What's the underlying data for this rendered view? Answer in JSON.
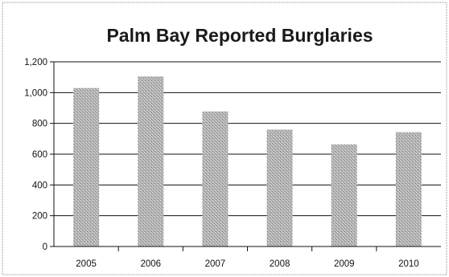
{
  "chart_data": {
    "type": "bar",
    "title": "Palm Bay Reported Burglaries",
    "xlabel": "",
    "ylabel": "",
    "categories": [
      "2005",
      "2006",
      "2007",
      "2008",
      "2009",
      "2010"
    ],
    "values": [
      1030,
      1105,
      878,
      760,
      663,
      743
    ],
    "ylim": [
      0,
      1200
    ],
    "yticks": [
      0,
      200,
      400,
      600,
      800,
      1000,
      1200
    ],
    "ytick_labels": [
      "0",
      "200",
      "400",
      "600",
      "800",
      "1,000",
      "1,200"
    ],
    "grid": true,
    "legend": "none",
    "colors": {
      "bar": "#b5b5b5",
      "grid": "#111111",
      "axis": "#111111",
      "title": "#1a1a1a"
    }
  }
}
